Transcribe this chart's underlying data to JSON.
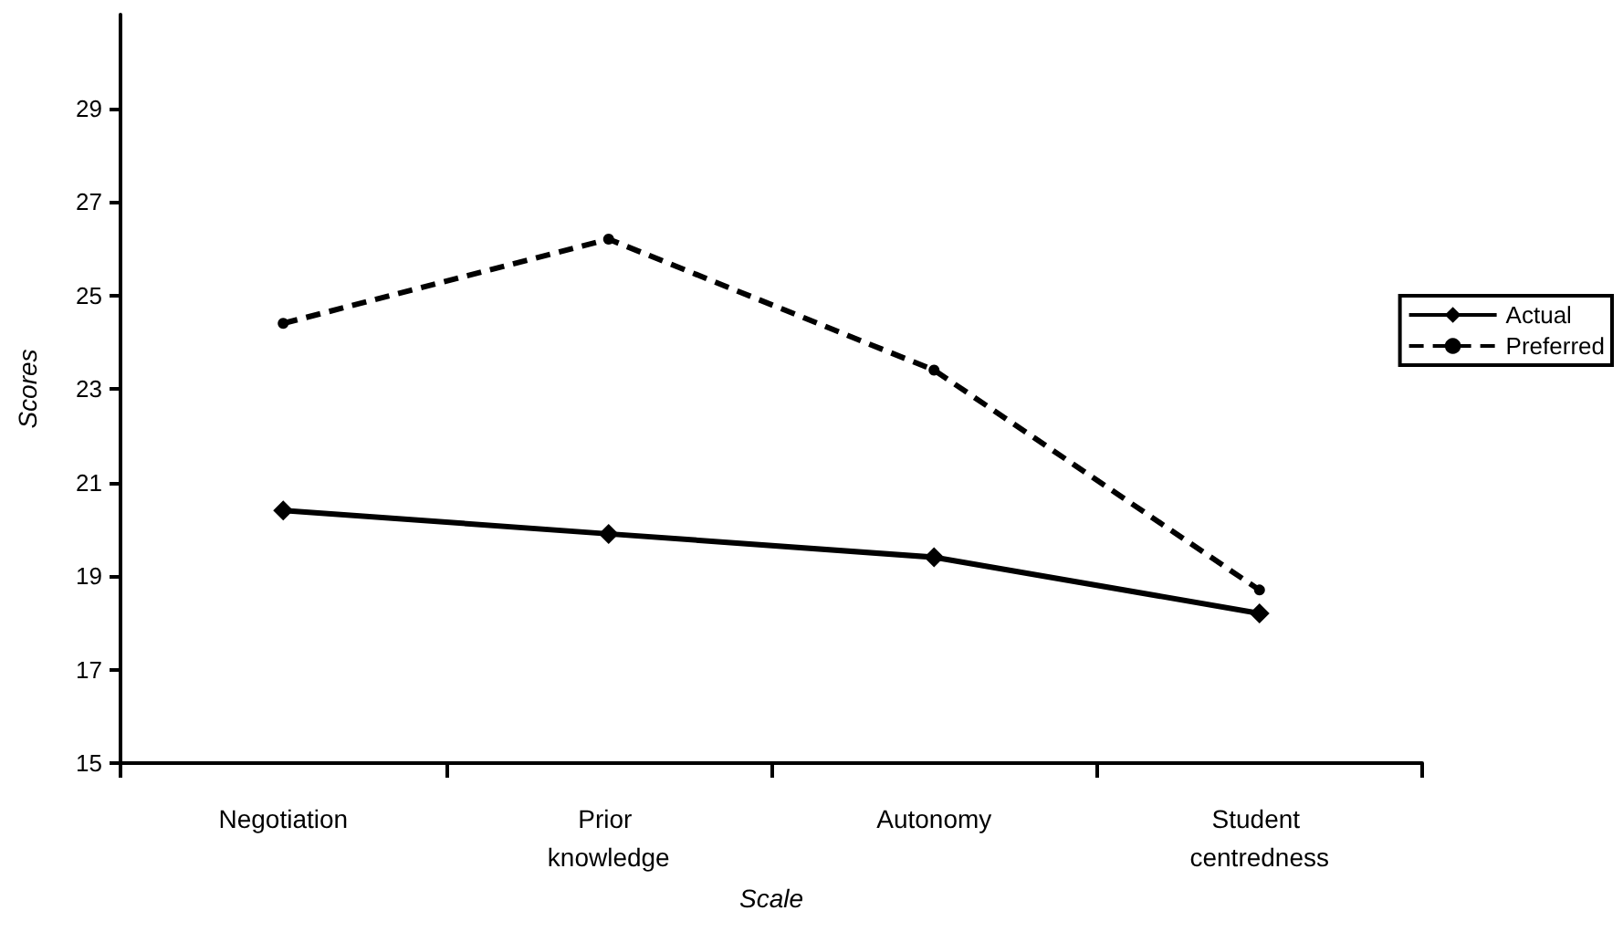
{
  "chart_data": {
    "type": "line",
    "xlabel": "Scale",
    "ylabel": "Scores",
    "categories": [
      "Negotiation",
      "Prior knowledge",
      "Autonomy",
      "Student centredness"
    ],
    "series": [
      {
        "name": "Actual",
        "color": "#000000",
        "values": [
          20.4,
          19.9,
          19.4,
          18.2
        ],
        "marker": "diamond",
        "line_style": "solid"
      },
      {
        "name": "Preferred",
        "color": "#000000",
        "values": [
          24.4,
          26.2,
          23.4,
          18.7
        ],
        "marker": "circle",
        "line_style": "dashed"
      }
    ],
    "ylim": [
      15,
      31
    ],
    "yticks": [
      15,
      17,
      19,
      21,
      23,
      25,
      27,
      29
    ],
    "grid": false,
    "legend": "right"
  }
}
